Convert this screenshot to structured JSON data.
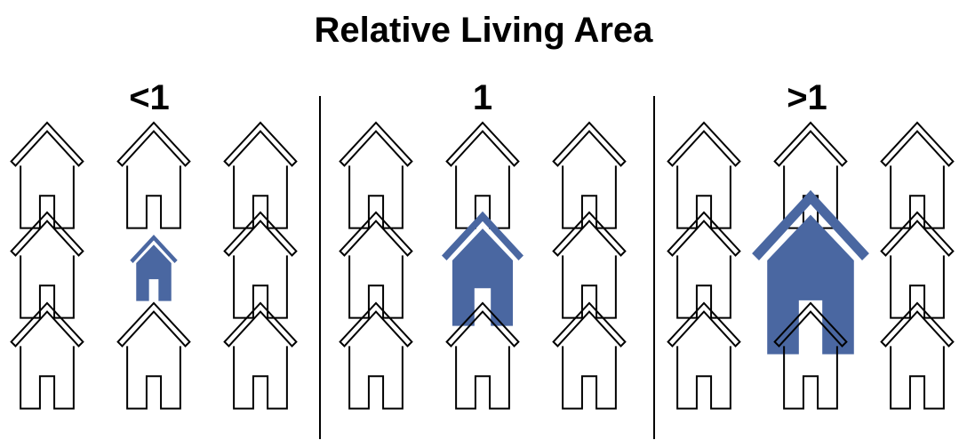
{
  "title": "Relative Living Area",
  "panels": [
    {
      "label": "<1",
      "relative_area": 0.5
    },
    {
      "label": "1",
      "relative_area": 1
    },
    {
      "label": ">1",
      "relative_area": 1.5
    }
  ],
  "grid": {
    "rows": 3,
    "cols": 3,
    "highlight_row": 1,
    "highlight_col": 1
  },
  "colors": {
    "highlight": "#4a67a1",
    "outline": "#000000",
    "background": "#ffffff",
    "divider": "#000000"
  },
  "icons": {
    "neighbor": "house-outline-icon",
    "subject": "house-filled-icon"
  }
}
